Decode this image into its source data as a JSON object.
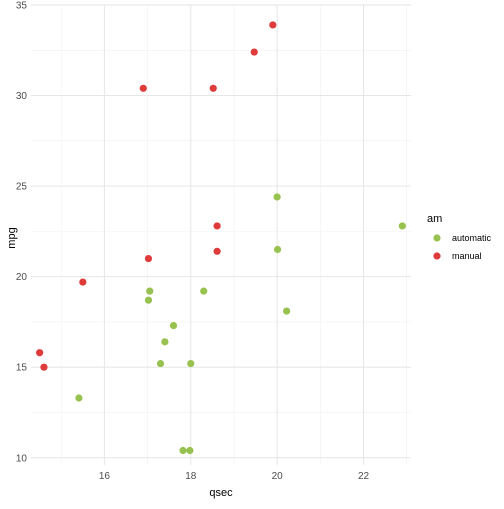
{
  "chart_data": {
    "type": "scatter",
    "xlabel": "qsec",
    "ylabel": "mpg",
    "xlim": [
      14.3,
      23.1
    ],
    "ylim": [
      9.6,
      35.0
    ],
    "x_ticks": [
      16,
      18,
      20,
      22
    ],
    "y_ticks": [
      10,
      15,
      20,
      25,
      30,
      35
    ],
    "x_minor": [
      15,
      17,
      19,
      21,
      23
    ],
    "y_minor": [
      12.5,
      17.5,
      22.5,
      27.5,
      32.5
    ],
    "grid": true,
    "legend": {
      "title": "am",
      "position": "right"
    },
    "series": [
      {
        "name": "automatic",
        "color": "#97c24f",
        "points": [
          [
            15.41,
            13.3
          ],
          [
            17.05,
            19.2
          ],
          [
            17.02,
            18.7
          ],
          [
            17.6,
            17.3
          ],
          [
            17.4,
            16.4
          ],
          [
            17.3,
            15.2
          ],
          [
            18.0,
            15.2
          ],
          [
            17.82,
            10.4
          ],
          [
            17.98,
            10.4
          ],
          [
            18.3,
            19.2
          ],
          [
            20.0,
            24.4
          ],
          [
            20.01,
            21.5
          ],
          [
            20.22,
            18.1
          ],
          [
            22.9,
            22.8
          ]
        ]
      },
      {
        "name": "manual",
        "color": "#e03b3b",
        "points": [
          [
            14.5,
            15.8
          ],
          [
            14.6,
            15.0
          ],
          [
            15.5,
            19.7
          ],
          [
            16.9,
            30.4
          ],
          [
            17.02,
            21.0
          ],
          [
            18.52,
            30.4
          ],
          [
            18.61,
            22.8
          ],
          [
            18.61,
            21.4
          ],
          [
            19.47,
            32.4
          ],
          [
            19.9,
            33.9
          ]
        ]
      }
    ]
  }
}
